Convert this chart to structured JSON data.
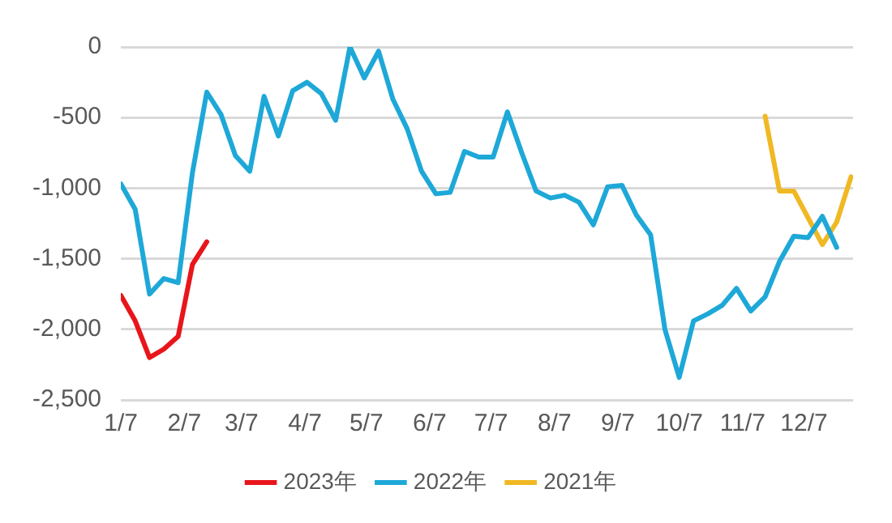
{
  "chart_data": {
    "type": "line",
    "grid": "y",
    "legend": "bottom",
    "marker": "none",
    "line_style": "solid",
    "xlim": [
      "--01-07",
      "--12-31"
    ],
    "xticks": [
      {
        "value": "--01-07",
        "label": "1/7"
      },
      {
        "value": "--02-07",
        "label": "2/7"
      },
      {
        "value": "--03-07",
        "label": "3/7"
      },
      {
        "value": "--04-07",
        "label": "4/7"
      },
      {
        "value": "--05-07",
        "label": "5/7"
      },
      {
        "value": "--06-07",
        "label": "6/7"
      },
      {
        "value": "--07-07",
        "label": "7/7"
      },
      {
        "value": "--08-07",
        "label": "8/7"
      },
      {
        "value": "--09-07",
        "label": "9/7"
      },
      {
        "value": "--10-07",
        "label": "10/7"
      },
      {
        "value": "--11-07",
        "label": "11/7"
      },
      {
        "value": "--12-07",
        "label": "12/7"
      }
    ],
    "ylim": [
      -2500,
      0
    ],
    "yticks": [
      0,
      -500,
      {
        "value": -1000,
        "label": "-1,000"
      },
      {
        "value": -1500,
        "label": "-1,500"
      },
      {
        "value": -2000,
        "label": "-2,000"
      },
      {
        "value": -2500,
        "label": "-2,500"
      }
    ],
    "series": [
      {
        "name": "2023年",
        "color": "#e8161b",
        "x": [
          "--01-07",
          "--01-14",
          "--01-21",
          "--01-28",
          "--02-04",
          "--02-11",
          "--02-18"
        ],
        "values": [
          -1760,
          -1940,
          -2200,
          -2140,
          -2050,
          -1540,
          -1380
        ]
      },
      {
        "name": "2022年",
        "color": "#1ea8d8",
        "x": [
          "--01-07",
          "--01-14",
          "--01-21",
          "--01-28",
          "--02-04",
          "--02-11",
          "--02-18",
          "--02-25",
          "--03-04",
          "--03-11",
          "--03-18",
          "--03-25",
          "--04-01",
          "--04-08",
          "--04-15",
          "--04-22",
          "--04-29",
          "--05-06",
          "--05-13",
          "--05-20",
          "--05-27",
          "--06-03",
          "--06-10",
          "--06-17",
          "--06-24",
          "--07-01",
          "--07-08",
          "--07-15",
          "--07-22",
          "--07-29",
          "--08-05",
          "--08-12",
          "--08-19",
          "--08-26",
          "--09-02",
          "--09-09",
          "--09-16",
          "--09-23",
          "--09-30",
          "--10-07",
          "--10-14",
          "--10-21",
          "--10-28",
          "--11-04",
          "--11-11",
          "--11-18",
          "--11-25",
          "--12-02",
          "--12-09",
          "--12-16",
          "--12-23"
        ],
        "values": [
          -970,
          -1150,
          -1750,
          -1640,
          -1670,
          -890,
          -320,
          -480,
          -770,
          -880,
          -350,
          -630,
          -310,
          -250,
          -330,
          -520,
          0,
          -220,
          -30,
          -370,
          -580,
          -880,
          -1040,
          -1030,
          -740,
          -780,
          -780,
          -460,
          -750,
          -1020,
          -1070,
          -1050,
          -1100,
          -1260,
          -990,
          -980,
          -1190,
          -1330,
          -2000,
          -2340,
          -1940,
          -1890,
          -1830,
          -1710,
          -1870,
          -1770,
          -1520,
          -1340,
          -1350,
          -1200,
          -1420
        ]
      },
      {
        "name": "2021年",
        "color": "#f0b823",
        "x": [
          "--11-18",
          "--11-25",
          "--12-02",
          "--12-09",
          "--12-16",
          "--12-23",
          "--12-30"
        ],
        "values": [
          -490,
          -1020,
          -1020,
          -1210,
          -1400,
          -1240,
          -920
        ]
      }
    ]
  }
}
